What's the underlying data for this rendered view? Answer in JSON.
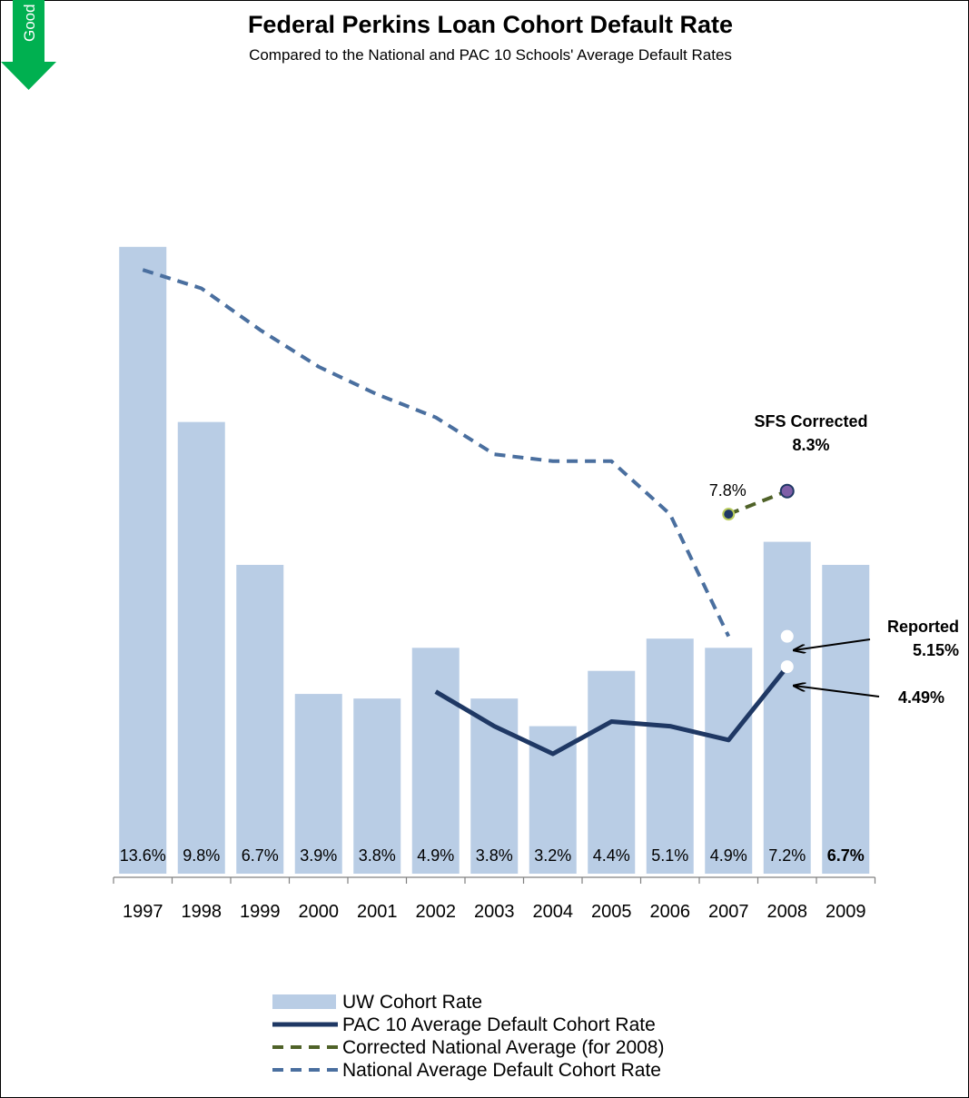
{
  "badge": {
    "label": "Good",
    "color": "#00b050"
  },
  "chart_data": {
    "type": "bar",
    "title": "Federal Perkins Loan Cohort Default Rate",
    "subtitle": "Compared to the National and PAC 10 Schools' Average Default Rates",
    "categories": [
      "1997",
      "1998",
      "1999",
      "2000",
      "2001",
      "2002",
      "2003",
      "2004",
      "2005",
      "2006",
      "2007",
      "2008",
      "2009"
    ],
    "ylim": [
      0,
      16
    ],
    "series": [
      {
        "name": "UW Cohort Rate",
        "type": "bar",
        "color": "#b9cde5",
        "values": [
          13.6,
          9.8,
          6.7,
          3.9,
          3.8,
          4.9,
          3.8,
          3.2,
          4.4,
          5.1,
          4.9,
          7.2,
          6.7
        ],
        "labels": [
          "13.6%",
          "9.8%",
          "6.7%",
          "3.9%",
          "3.8%",
          "4.9%",
          "3.8%",
          "3.2%",
          "4.4%",
          "5.1%",
          "4.9%",
          "7.2%",
          "6.7%"
        ]
      },
      {
        "name": "PAC 10 Average Default Cohort Rate",
        "type": "line",
        "style": "solid",
        "color": "#1f3864",
        "values": [
          null,
          null,
          null,
          null,
          null,
          3.95,
          3.2,
          2.6,
          3.3,
          3.2,
          2.9,
          4.49,
          null
        ]
      },
      {
        "name": "Corrected National Average (for 2008)",
        "type": "line",
        "style": "dashed",
        "color": "#4f6228",
        "values": [
          null,
          null,
          null,
          null,
          null,
          null,
          null,
          null,
          null,
          null,
          7.8,
          8.3,
          null
        ]
      },
      {
        "name": "National Average Default Cohort Rate",
        "type": "line",
        "style": "dashed",
        "color": "#4a6f9f",
        "values": [
          13.1,
          12.7,
          11.8,
          11.0,
          10.4,
          9.9,
          9.1,
          8.95,
          8.95,
          7.8,
          5.15,
          null,
          null
        ]
      }
    ],
    "point_labels": [
      {
        "text": "7.8%",
        "series": "Corrected National Average (for 2008)",
        "category": "2007"
      }
    ],
    "annotations": [
      {
        "lines": [
          "SFS  Corrected",
          "8.3%"
        ],
        "category": "2008",
        "value": 8.3
      },
      {
        "lines": [
          "Reported",
          "5.15%"
        ],
        "category": "2008",
        "value": 5.15
      },
      {
        "lines": [
          "4.49%"
        ],
        "category": "2008",
        "value": 4.49
      }
    ],
    "legend_position": "bottom",
    "grid": false
  }
}
